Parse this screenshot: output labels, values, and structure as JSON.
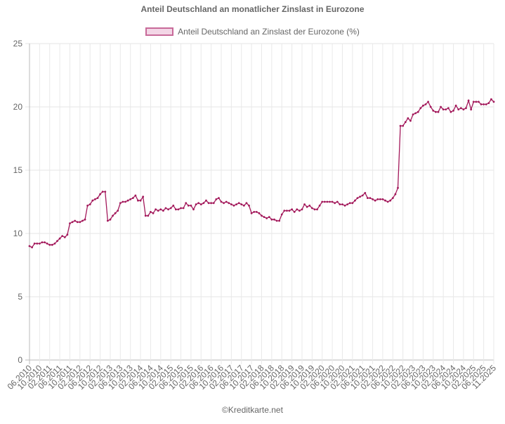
{
  "title": "Anteil Deutschland an monatlicher Zinslast in Eurozone",
  "legend": {
    "label": "Anteil Deutschland an Zinslast der Eurozone (%)",
    "color": "#a3195b",
    "fill": "#f3d6e6"
  },
  "footer": "©Kreditkarte.net",
  "chart_data": {
    "type": "line",
    "title": "Anteil Deutschland an monatlicher Zinslast in Eurozone",
    "xlabel": "",
    "ylabel": "",
    "ylim": [
      0,
      25
    ],
    "yticks": [
      0,
      5,
      10,
      15,
      20,
      25
    ],
    "grid": true,
    "legend_position": "top",
    "x_tick_labels": [
      "06.2010",
      "10.2010",
      "02.2011",
      "06.2011",
      "10.2011",
      "02.2012",
      "06.2012",
      "10.2012",
      "02.2013",
      "06.2013",
      "10.2013",
      "02.2014",
      "06.2014",
      "10.2014",
      "02.2015",
      "06.2015",
      "10.2015",
      "02.2016",
      "06.2016",
      "10.2016",
      "02.2017",
      "06.2017",
      "10.2017",
      "02.2018",
      "06.2018",
      "10.2018",
      "02.2019",
      "06.2019",
      "10.2019",
      "02.2020",
      "06.2020",
      "10.2020",
      "02.2021",
      "06.2021",
      "10.2021",
      "02.2022",
      "06.2022",
      "10.2022",
      "02.2023",
      "06.2023",
      "10.2023",
      "02.2024",
      "06.2024",
      "10.2024",
      "02.2025",
      "06.2025",
      "11.2025"
    ],
    "x_start": "06.2010",
    "x_end": "11.2025",
    "frequency": "monthly",
    "series": [
      {
        "name": "Anteil Deutschland an Zinslast der Eurozone (%)",
        "color": "#a3195b",
        "values": [
          9.0,
          8.9,
          9.2,
          9.2,
          9.2,
          9.3,
          9.3,
          9.2,
          9.1,
          9.1,
          9.2,
          9.4,
          9.6,
          9.8,
          9.7,
          9.9,
          10.8,
          10.9,
          11.0,
          10.9,
          10.9,
          11.0,
          11.1,
          12.2,
          12.3,
          12.6,
          12.7,
          12.8,
          13.1,
          13.3,
          13.3,
          11.0,
          11.1,
          11.4,
          11.6,
          11.8,
          12.4,
          12.5,
          12.5,
          12.6,
          12.7,
          12.8,
          13.0,
          12.6,
          12.6,
          12.9,
          11.4,
          11.4,
          11.7,
          11.6,
          11.9,
          11.8,
          11.9,
          11.8,
          12.0,
          11.9,
          12.0,
          12.2,
          11.9,
          11.9,
          12.0,
          12.0,
          12.4,
          12.2,
          12.2,
          11.9,
          12.3,
          12.4,
          12.3,
          12.4,
          12.6,
          12.4,
          12.4,
          12.4,
          12.7,
          12.8,
          12.5,
          12.4,
          12.5,
          12.4,
          12.3,
          12.2,
          12.3,
          12.4,
          12.3,
          12.2,
          12.4,
          12.2,
          11.6,
          11.7,
          11.7,
          11.6,
          11.4,
          11.3,
          11.2,
          11.3,
          11.1,
          11.1,
          11.0,
          11.0,
          11.5,
          11.8,
          11.8,
          11.8,
          11.9,
          11.7,
          11.9,
          11.8,
          11.9,
          12.3,
          12.1,
          12.2,
          12.0,
          11.9,
          11.9,
          12.2,
          12.5,
          12.5,
          12.5,
          12.5,
          12.5,
          12.4,
          12.5,
          12.3,
          12.3,
          12.2,
          12.3,
          12.4,
          12.4,
          12.6,
          12.8,
          12.9,
          13.0,
          13.2,
          12.8,
          12.8,
          12.7,
          12.6,
          12.7,
          12.7,
          12.7,
          12.6,
          12.5,
          12.6,
          12.8,
          13.1,
          13.6,
          18.5,
          18.5,
          18.8,
          19.1,
          18.9,
          19.4,
          19.5,
          19.6,
          19.9,
          20.1,
          20.2,
          20.4,
          20.0,
          19.7,
          19.6,
          19.6,
          20.0,
          19.8,
          19.8,
          19.9,
          19.6,
          19.7,
          20.1,
          19.8,
          19.9,
          19.8,
          19.9,
          20.5,
          19.8,
          20.4,
          20.4,
          20.4,
          20.2,
          20.2,
          20.2,
          20.3,
          20.6,
          20.4
        ]
      }
    ]
  }
}
